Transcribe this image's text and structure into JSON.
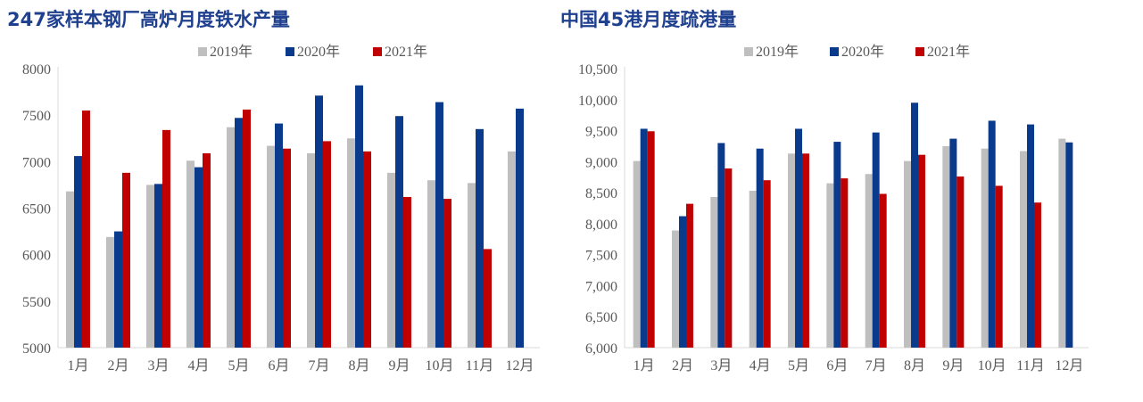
{
  "chart_data": [
    {
      "type": "bar",
      "title": "247家样本钢厂高炉月度铁水产量",
      "categories": [
        "1月",
        "2月",
        "3月",
        "4月",
        "5月",
        "6月",
        "7月",
        "8月",
        "9月",
        "10月",
        "11月",
        "12月"
      ],
      "ylim": [
        5000,
        8000
      ],
      "yticks": [
        "5000",
        "5500",
        "6000",
        "6500",
        "7000",
        "7500",
        "8000"
      ],
      "legend_position": "top",
      "grid": false,
      "series": [
        {
          "name": "2019年",
          "color": "#bfbfbf",
          "values": [
            6680,
            6190,
            6750,
            7010,
            7370,
            7170,
            7090,
            7250,
            6880,
            6800,
            6770,
            7110
          ]
        },
        {
          "name": "2020年",
          "color": "#0a3a8c",
          "values": [
            7060,
            6250,
            6760,
            6940,
            7470,
            7410,
            7710,
            7820,
            7490,
            7640,
            7350,
            7570
          ]
        },
        {
          "name": "2021年",
          "color": "#c00000",
          "values": [
            7550,
            6880,
            7340,
            7090,
            7560,
            7140,
            7220,
            7110,
            6620,
            6600,
            6060,
            null
          ]
        }
      ]
    },
    {
      "type": "bar",
      "title": "中国45港月度疏港量",
      "categories": [
        "1月",
        "2月",
        "3月",
        "4月",
        "5月",
        "6月",
        "7月",
        "8月",
        "9月",
        "10月",
        "11月",
        "12月"
      ],
      "ylim": [
        6000,
        10500
      ],
      "yticks": [
        "6,000",
        "6,500",
        "7,000",
        "7,500",
        "8,000",
        "8,500",
        "9,000",
        "9,500",
        "10,000",
        "10,500"
      ],
      "legend_position": "top",
      "grid": false,
      "series": [
        {
          "name": "2019年",
          "color": "#bfbfbf",
          "values": [
            9010,
            7890,
            8430,
            8530,
            9130,
            8650,
            8800,
            9010,
            9250,
            9210,
            9170,
            9370
          ]
        },
        {
          "name": "2020年",
          "color": "#0a3a8c",
          "values": [
            9530,
            8120,
            9300,
            9210,
            9530,
            9320,
            9470,
            9950,
            9370,
            9660,
            9600,
            9310
          ]
        },
        {
          "name": "2021年",
          "color": "#c00000",
          "values": [
            9490,
            8320,
            8890,
            8700,
            9130,
            8730,
            8480,
            9110,
            8760,
            8610,
            8340,
            null
          ]
        }
      ]
    }
  ]
}
